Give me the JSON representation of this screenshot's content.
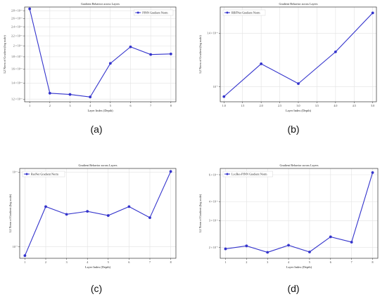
{
  "chart_data": [
    {
      "id": "a",
      "type": "line",
      "title": "Gradient Behavior across Layers",
      "xlabel": "Layer Index (Depth)",
      "ylabel": "L2 Norm of Gradient (log scale)",
      "yscale": "log",
      "legend": "top-right",
      "grid": true,
      "color": "#3333cc",
      "xlim": [
        0.75,
        8.25
      ],
      "ylim": [
        1.17e-06,
        2.9e-06
      ],
      "x_ticks": [
        1,
        2,
        3,
        4,
        5,
        6,
        7,
        8
      ],
      "x_tick_labels": [
        "1",
        "2",
        "3",
        "4",
        "5",
        "6",
        "7",
        "8"
      ],
      "y_ticks": [
        1.2e-06,
        1.4e-06,
        1.6e-06,
        1.8e-06,
        2e-06,
        2.2e-06,
        2.4e-06,
        2.6e-06,
        2.8e-06
      ],
      "y_tick_labels": [
        "1.2 × 10⁻⁶",
        "1.4 × 10⁻⁶",
        "1.6 × 10⁻⁶",
        "1.8 × 10⁻⁶",
        "2 × 10⁻⁶",
        "2.2 × 10⁻⁶",
        "2.4 × 10⁻⁶",
        "2.6 × 10⁻⁶",
        "2.8 × 10⁻⁶"
      ],
      "series": [
        {
          "name": "PINN Gradient Norm",
          "x": [
            1,
            2,
            3,
            4,
            5,
            6,
            7,
            8
          ],
          "values": [
            2.85e-06,
            1.27e-06,
            1.255e-06,
            1.225e-06,
            1.69e-06,
            1.98e-06,
            1.84e-06,
            1.85e-06
          ]
        }
      ]
    },
    {
      "id": "b",
      "type": "line",
      "title": "Gradient Behavior across Layers",
      "xlabel": "Layer Index (Depth)",
      "ylabel": "L2 Norm of Gradient (log scale)",
      "yscale": "log",
      "legend": "top-left",
      "grid": true,
      "color": "#3333cc",
      "xlim": [
        0.9,
        5.1
      ],
      "ylim": [
        9.1e-08,
        1.65e-07
      ],
      "x_ticks": [
        1.0,
        1.5,
        2.0,
        2.5,
        3.0,
        3.5,
        4.0,
        4.5,
        5.0
      ],
      "x_tick_labels": [
        "1.0",
        "1.5",
        "2.0",
        "2.5",
        "3.0",
        "3.5",
        "4.0",
        "4.5",
        "5.0"
      ],
      "y_ticks": [
        1e-07,
        1.4e-07
      ],
      "y_tick_labels": [
        "10⁻⁷",
        "1.4 × 10⁻⁷"
      ],
      "series": [
        {
          "name": "RBFNet Gradient Norm",
          "x": [
            1,
            2,
            3,
            4,
            5
          ],
          "values": [
            9.4e-08,
            1.155e-07,
            1.02e-07,
            1.245e-07,
            1.59e-07
          ]
        }
      ]
    },
    {
      "id": "c",
      "type": "line",
      "title": "Gradient Behavior across Layers",
      "xlabel": "Layer Index (Depth)",
      "ylabel": "L2 Norm of Gradient (log scale)",
      "yscale": "log",
      "legend": "top-left",
      "grid": true,
      "color": "#3333cc",
      "xlim": [
        0.75,
        8.25
      ],
      "ylim": [
        7e-08,
        1.12e-06
      ],
      "x_ticks": [
        1,
        2,
        3,
        4,
        5,
        6,
        7,
        8
      ],
      "x_tick_labels": [
        "1",
        "2",
        "3",
        "4",
        "5",
        "6",
        "7",
        "8"
      ],
      "y_ticks": [
        1e-07,
        1e-06
      ],
      "y_tick_labels": [
        "10⁻⁷",
        "10⁻⁶"
      ],
      "series": [
        {
          "name": "ResNet Gradient Norm",
          "x": [
            1,
            2,
            3,
            4,
            5,
            6,
            7,
            8
          ],
          "values": [
            7.6e-08,
            3.45e-07,
            2.72e-07,
            2.98e-07,
            2.62e-07,
            3.45e-07,
            2.45e-07,
            1.02e-06
          ]
        }
      ]
    },
    {
      "id": "d",
      "type": "line",
      "title": "Gradient Behavior across Layers",
      "xlabel": "Layer Index (Depth)",
      "ylabel": "L2 Norm of Gradient (log scale)",
      "yscale": "log",
      "legend": "top-left",
      "grid": true,
      "color": "#3333cc",
      "xlim": [
        0.75,
        8.25
      ],
      "ylim": [
        1.7e-07,
        6.6e-07
      ],
      "x_ticks": [
        1,
        2,
        3,
        4,
        5,
        6,
        7,
        8
      ],
      "x_tick_labels": [
        "1",
        "2",
        "3",
        "4",
        "5",
        "6",
        "7",
        "8"
      ],
      "y_ticks": [
        2e-07,
        3e-07,
        4e-07,
        6e-07
      ],
      "y_tick_labels": [
        "2 × 10⁻⁷",
        "3 × 10⁻⁷",
        "4 × 10⁻⁷",
        "6 × 10⁻⁷"
      ],
      "series": [
        {
          "name": "LocRes-PINN Gradient Norm",
          "x": [
            1,
            2,
            3,
            4,
            5,
            6,
            7,
            8
          ],
          "values": [
            1.96e-07,
            2.05e-07,
            1.86e-07,
            2.07e-07,
            1.87e-07,
            2.35e-07,
            2.17e-07,
            6.2e-07
          ]
        }
      ]
    }
  ],
  "captions": {
    "a": "(a)",
    "b": "(b)",
    "c": "(c)",
    "d": "(d)"
  }
}
